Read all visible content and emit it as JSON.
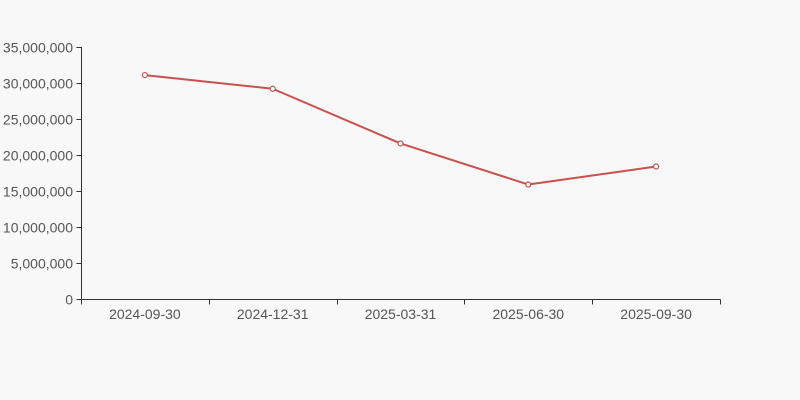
{
  "window": {
    "background_color": "#f8f8f8"
  },
  "chart_data": {
    "type": "line",
    "title": "",
    "xlabel": "",
    "ylabel": "",
    "categories": [
      "2024-09-30",
      "2024-12-31",
      "2025-03-31",
      "2025-06-30",
      "2025-09-30"
    ],
    "values": [
      31100000,
      29200000,
      21600000,
      15900000,
      18400000
    ],
    "ylim": [
      0,
      35000000
    ],
    "y_tick_interval": 5000000,
    "y_tick_labels": [
      "0",
      "5,000,000",
      "10,000,000",
      "15,000,000",
      "20,000,000",
      "25,000,000",
      "30,000,000",
      "35,000,000"
    ],
    "grid": false,
    "legend": null,
    "line_color": "#c8504d",
    "marker_style": "hollow-circle",
    "marker_fill": "#ffffff",
    "axis_color": "#333333",
    "tick_label_color": "#555555",
    "background": "#f8f8f8"
  }
}
